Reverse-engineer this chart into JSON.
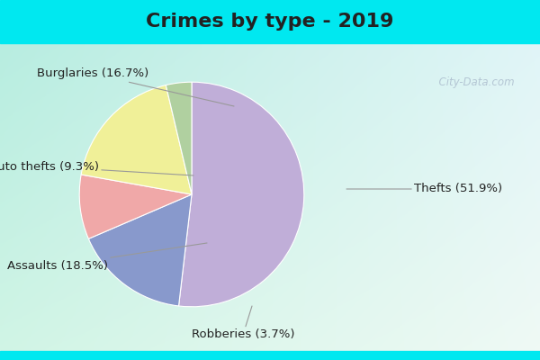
{
  "title": "Crimes by type - 2019",
  "slices": [
    {
      "label": "Thefts",
      "pct": 51.9,
      "color": "#c0aed8"
    },
    {
      "label": "Burglaries",
      "pct": 16.7,
      "color": "#8899cc"
    },
    {
      "label": "Auto thefts",
      "pct": 9.3,
      "color": "#f0a8a8"
    },
    {
      "label": "Assaults",
      "pct": 18.5,
      "color": "#f0f098"
    },
    {
      "label": "Robberies",
      "pct": 3.7,
      "color": "#b0d0a0"
    }
  ],
  "bg_top_color": "#00e8f0",
  "title_color": "#222222",
  "title_fontsize": 16,
  "label_fontsize": 9.5,
  "watermark": "  City-Data.com",
  "watermark_color": "#aabbcc"
}
